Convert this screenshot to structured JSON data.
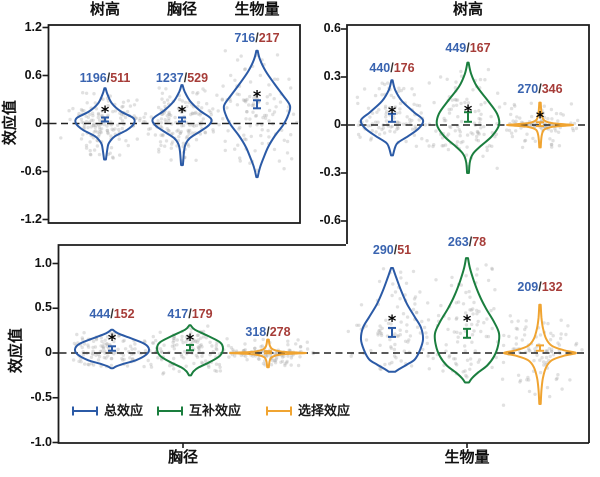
{
  "figure": {
    "separator": "/",
    "star_symbol": "*",
    "colors": {
      "blue": "#2b5aa6",
      "green": "#1a7e3e",
      "orange": "#f0a431",
      "n_blue": "#3a64b0",
      "n_red": "#a63c38",
      "separator_color": "#333333",
      "dots": "#a9a9a9",
      "axis": "#1c1c1c",
      "text": "#111111"
    },
    "legend": {
      "items": [
        {
          "label": "总效应",
          "color_key": "blue"
        },
        {
          "label": "互补效应",
          "color_key": "green"
        },
        {
          "label": "选择效应",
          "color_key": "orange"
        }
      ]
    },
    "chart_data": [
      {
        "panel": "top-left",
        "type": "violin",
        "column_titles": [
          "树高",
          "胸径",
          "生物量"
        ],
        "ylabel": "效应值",
        "ylim": [
          -1.2,
          1.2
        ],
        "yticks": [
          "1.2",
          "0.6",
          "0",
          "-0.6",
          "-1.2"
        ],
        "zero_dashed_line": 0,
        "violins": [
          {
            "category": "树高",
            "series": "总效应",
            "color_key": "blue",
            "n_label": {
              "blue": "1196",
              "red": "511"
            },
            "mean": 0.05,
            "ci": 0.025,
            "star": 0.17,
            "profile": [
              [
                0.44,
                0.02
              ],
              [
                0.36,
                0.09
              ],
              [
                0.25,
                0.24
              ],
              [
                0.15,
                0.55
              ],
              [
                0.07,
                0.97
              ],
              [
                0.0,
                1.0
              ],
              [
                -0.08,
                0.76
              ],
              [
                -0.16,
                0.34
              ],
              [
                -0.24,
                0.14
              ],
              [
                -0.3,
                0.09
              ],
              [
                -0.45,
                0.03
              ]
            ]
          },
          {
            "category": "胸径",
            "series": "总效应",
            "color_key": "blue",
            "n_label": {
              "blue": "1237",
              "red": "529"
            },
            "mean": 0.05,
            "ci": 0.025,
            "star": 0.17,
            "profile": [
              [
                0.48,
                0.02
              ],
              [
                0.4,
                0.09
              ],
              [
                0.28,
                0.28
              ],
              [
                0.16,
                0.62
              ],
              [
                0.06,
                1.0
              ],
              [
                -0.02,
                0.93
              ],
              [
                -0.1,
                0.62
              ],
              [
                -0.18,
                0.28
              ],
              [
                -0.26,
                0.12
              ],
              [
                -0.35,
                0.07
              ],
              [
                -0.52,
                0.03
              ]
            ]
          },
          {
            "category": "生物量",
            "series": "总效应",
            "color_key": "blue",
            "n_label": {
              "blue": "716",
              "red": "217"
            },
            "mean": 0.24,
            "ci": 0.05,
            "star": 0.36,
            "profile": [
              [
                0.91,
                0.02
              ],
              [
                0.8,
                0.09
              ],
              [
                0.65,
                0.27
              ],
              [
                0.5,
                0.52
              ],
              [
                0.35,
                0.79
              ],
              [
                0.22,
                1.0
              ],
              [
                0.1,
                0.94
              ],
              [
                -0.02,
                0.79
              ],
              [
                -0.15,
                0.55
              ],
              [
                -0.3,
                0.33
              ],
              [
                -0.45,
                0.18
              ],
              [
                -0.55,
                0.09
              ],
              [
                -0.67,
                0.02
              ]
            ]
          }
        ]
      },
      {
        "panel": "top-right",
        "type": "violin",
        "title": "树高",
        "ylabel": "",
        "ylim": [
          -0.6,
          0.6
        ],
        "yticks": [
          "0.6",
          "0.3",
          "0",
          "-0.3",
          "-0.6"
        ],
        "zero_dashed_line": 0,
        "violins": [
          {
            "category": "树高",
            "series": "总效应",
            "color_key": "blue",
            "n_label": {
              "blue": "440",
              "red": "176"
            },
            "mean": 0.045,
            "ci": 0.025,
            "star": 0.09,
            "profile": [
              [
                0.28,
                0.02
              ],
              [
                0.22,
                0.1
              ],
              [
                0.15,
                0.32
              ],
              [
                0.08,
                0.71
              ],
              [
                0.03,
                1.0
              ],
              [
                -0.02,
                0.87
              ],
              [
                -0.07,
                0.52
              ],
              [
                -0.11,
                0.19
              ],
              [
                -0.14,
                0.1
              ],
              [
                -0.19,
                0.03
              ]
            ]
          },
          {
            "category": "树高",
            "series": "互补效应",
            "color_key": "green",
            "n_label": {
              "blue": "449",
              "red": "167"
            },
            "mean": 0.05,
            "ci": 0.03,
            "star": 0.1,
            "profile": [
              [
                0.39,
                0.02
              ],
              [
                0.32,
                0.1
              ],
              [
                0.24,
                0.29
              ],
              [
                0.15,
                0.65
              ],
              [
                0.07,
                0.94
              ],
              [
                0.0,
                1.0
              ],
              [
                -0.07,
                0.77
              ],
              [
                -0.13,
                0.42
              ],
              [
                -0.18,
                0.16
              ],
              [
                -0.23,
                0.06
              ],
              [
                -0.3,
                0.03
              ]
            ]
          },
          {
            "category": "树高",
            "series": "选择效应",
            "color_key": "orange",
            "n_label": {
              "blue": "270",
              "red": "346"
            },
            "mean": 0.005,
            "ci": 0.012,
            "star": 0.06,
            "profile": [
              [
                0.14,
                0.02
              ],
              [
                0.07,
                0.05
              ],
              [
                0.03,
                0.12
              ],
              [
                0.012,
                0.36
              ],
              [
                0.004,
                0.79
              ],
              [
                0,
                1.0
              ],
              [
                -0.004,
                0.79
              ],
              [
                -0.012,
                0.36
              ],
              [
                -0.03,
                0.12
              ],
              [
                -0.07,
                0.05
              ],
              [
                -0.14,
                0.02
              ]
            ]
          }
        ]
      },
      {
        "panel": "bottom",
        "type": "violin",
        "group_labels": [
          "胸径",
          "生物量"
        ],
        "ylabel": "效应值",
        "ylim": [
          -1.0,
          1.0
        ],
        "yticks": [
          "1.0",
          "0.5",
          "0",
          "-0.5",
          "-1.0"
        ],
        "zero_dashed_line": 0,
        "violins": [
          {
            "category": "胸径",
            "series": "总效应",
            "color_key": "blue",
            "n_label": {
              "blue": "444",
              "red": "152"
            },
            "mean": 0.05,
            "ci": 0.025,
            "star": 0.17,
            "profile": [
              [
                0.26,
                0.02
              ],
              [
                0.22,
                0.16
              ],
              [
                0.16,
                0.54
              ],
              [
                0.1,
                0.89
              ],
              [
                0.04,
                1.0
              ],
              [
                -0.02,
                0.92
              ],
              [
                -0.08,
                0.65
              ],
              [
                -0.12,
                0.32
              ],
              [
                -0.15,
                0.11
              ],
              [
                -0.17,
                0.03
              ]
            ]
          },
          {
            "category": "胸径",
            "series": "互补效应",
            "color_key": "green",
            "n_label": {
              "blue": "417",
              "red": "179"
            },
            "mean": 0.06,
            "ci": 0.03,
            "star": 0.17,
            "profile": [
              [
                0.31,
                0.02
              ],
              [
                0.26,
                0.15
              ],
              [
                0.19,
                0.55
              ],
              [
                0.12,
                0.91
              ],
              [
                0.05,
                1.0
              ],
              [
                -0.03,
                0.91
              ],
              [
                -0.1,
                0.61
              ],
              [
                -0.16,
                0.27
              ],
              [
                -0.2,
                0.12
              ],
              [
                -0.25,
                0.03
              ]
            ]
          },
          {
            "category": "胸径",
            "series": "选择效应",
            "color_key": "orange",
            "n_label": {
              "blue": "318",
              "red": "278"
            },
            "mean": 0.008,
            "ci": 0.012,
            "star": null,
            "profile": [
              [
                0.15,
                0.02
              ],
              [
                0.08,
                0.05
              ],
              [
                0.04,
                0.13
              ],
              [
                0.015,
                0.37
              ],
              [
                0.005,
                0.79
              ],
              [
                0,
                1.0
              ],
              [
                -0.005,
                0.79
              ],
              [
                -0.015,
                0.37
              ],
              [
                -0.04,
                0.13
              ],
              [
                -0.08,
                0.05
              ],
              [
                -0.16,
                0.02
              ]
            ]
          },
          {
            "category": "生物量",
            "series": "总效应",
            "color_key": "blue",
            "n_label": {
              "blue": "290",
              "red": "51"
            },
            "mean": 0.23,
            "ci": 0.05,
            "star": 0.38,
            "profile": [
              [
                0.95,
                0.03
              ],
              [
                0.85,
                0.13
              ],
              [
                0.7,
                0.29
              ],
              [
                0.55,
                0.48
              ],
              [
                0.4,
                0.74
              ],
              [
                0.28,
                0.94
              ],
              [
                0.15,
                1.0
              ],
              [
                0.03,
                0.9
              ],
              [
                -0.07,
                0.74
              ],
              [
                -0.13,
                0.48
              ],
              [
                -0.18,
                0.23
              ],
              [
                -0.21,
                0.1
              ]
            ]
          },
          {
            "category": "生物量",
            "series": "互补效应",
            "color_key": "green",
            "n_label": {
              "blue": "263",
              "red": "78"
            },
            "mean": 0.22,
            "ci": 0.05,
            "star": 0.38,
            "profile": [
              [
                1.06,
                0.03
              ],
              [
                0.95,
                0.09
              ],
              [
                0.8,
                0.22
              ],
              [
                0.65,
                0.38
              ],
              [
                0.5,
                0.59
              ],
              [
                0.35,
                0.84
              ],
              [
                0.22,
                1.0
              ],
              [
                0.08,
                0.97
              ],
              [
                -0.04,
                0.84
              ],
              [
                -0.14,
                0.63
              ],
              [
                -0.22,
                0.34
              ],
              [
                -0.28,
                0.16
              ],
              [
                -0.33,
                0.06
              ]
            ]
          },
          {
            "category": "生物量",
            "series": "选择效应",
            "color_key": "orange",
            "n_label": {
              "blue": "209",
              "red": "132"
            },
            "mean": 0.055,
            "ci": 0.03,
            "star": null,
            "profile": [
              [
                0.54,
                0.02
              ],
              [
                0.4,
                0.04
              ],
              [
                0.28,
                0.08
              ],
              [
                0.16,
                0.17
              ],
              [
                0.08,
                0.33
              ],
              [
                0.03,
                0.67
              ],
              [
                0,
                1.0
              ],
              [
                -0.03,
                0.67
              ],
              [
                -0.08,
                0.33
              ],
              [
                -0.16,
                0.17
              ],
              [
                -0.28,
                0.08
              ],
              [
                -0.42,
                0.04
              ],
              [
                -0.57,
                0.02
              ]
            ]
          }
        ]
      }
    ]
  }
}
